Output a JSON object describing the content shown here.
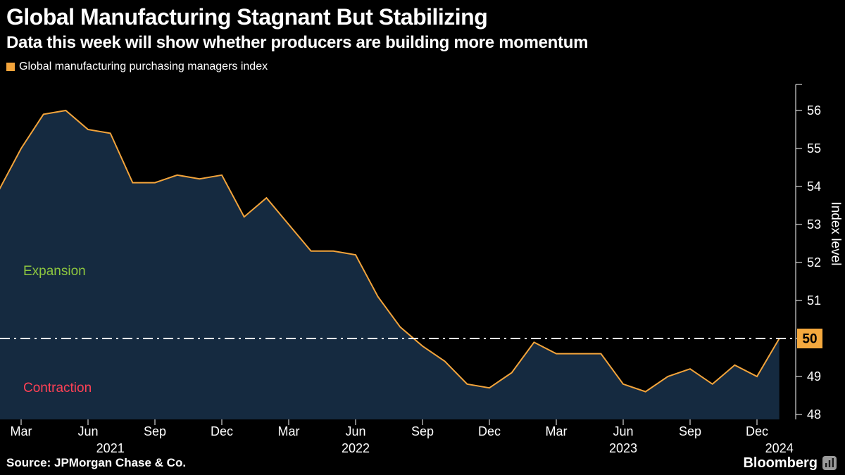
{
  "header": {
    "title": "Global Manufacturing Stagnant But Stabilizing",
    "subtitle": "Data this week will show whether producers are building more momentum"
  },
  "legend": {
    "label": "Global manufacturing purchasing managers index",
    "swatch_color": "#f3a43b"
  },
  "annotations": {
    "expansion": {
      "label": "Expansion",
      "color": "#8dc63f"
    },
    "contraction": {
      "label": "Contraction",
      "color": "#ff4155"
    }
  },
  "footer": {
    "source": "Source: JPMorgan Chase & Co.",
    "brand": "Bloomberg"
  },
  "chart_data": {
    "type": "area",
    "title": "Global Manufacturing Stagnant But Stabilizing",
    "series_name": "Global manufacturing purchasing managers index",
    "categories": [
      "Jan 2021",
      "Feb 2021",
      "Mar 2021",
      "Apr 2021",
      "May 2021",
      "Jun 2021",
      "Jul 2021",
      "Aug 2021",
      "Sep 2021",
      "Oct 2021",
      "Nov 2021",
      "Dec 2021",
      "Jan 2022",
      "Feb 2022",
      "Mar 2022",
      "Apr 2022",
      "May 2022",
      "Jun 2022",
      "Jul 2022",
      "Aug 2022",
      "Sep 2022",
      "Oct 2022",
      "Nov 2022",
      "Dec 2022",
      "Jan 2023",
      "Feb 2023",
      "Mar 2023",
      "Apr 2023",
      "May 2023",
      "Jun 2023",
      "Jul 2023",
      "Aug 2023",
      "Sep 2023",
      "Oct 2023",
      "Nov 2023",
      "Dec 2023",
      "Jan 2024"
    ],
    "values": [
      53.8,
      53.9,
      55.0,
      55.9,
      56.0,
      55.5,
      55.4,
      54.1,
      54.1,
      54.3,
      54.2,
      54.3,
      53.2,
      53.7,
      53.0,
      52.3,
      52.3,
      52.2,
      51.1,
      50.3,
      49.8,
      49.4,
      48.8,
      48.7,
      49.1,
      49.9,
      49.6,
      49.6,
      49.6,
      48.8,
      48.6,
      49.0,
      49.2,
      48.8,
      49.3,
      49.0,
      50.0
    ],
    "xlabel": "",
    "ylabel": "Index level",
    "ylim": [
      48,
      56
    ],
    "y_ticks": [
      48,
      49,
      50,
      51,
      52,
      53,
      54,
      55,
      56
    ],
    "x_ticks": [
      {
        "label": "Mar",
        "i": 2
      },
      {
        "label": "Jun",
        "i": 5
      },
      {
        "label": "Sep",
        "i": 8
      },
      {
        "label": "Dec",
        "i": 11
      },
      {
        "label": "Mar",
        "i": 14
      },
      {
        "label": "Jun",
        "i": 17
      },
      {
        "label": "Sep",
        "i": 20
      },
      {
        "label": "Dec",
        "i": 23
      },
      {
        "label": "Mar",
        "i": 26
      },
      {
        "label": "Jun",
        "i": 29
      },
      {
        "label": "Sep",
        "i": 32
      },
      {
        "label": "Dec",
        "i": 35
      }
    ],
    "year_labels": [
      {
        "label": "2021",
        "i": 6
      },
      {
        "label": "2022",
        "i": 17
      },
      {
        "label": "2023",
        "i": 29
      },
      {
        "label": "2024",
        "i": 36
      }
    ],
    "reference_line": {
      "value": 50,
      "label": "50",
      "style": "dash-dot",
      "color": "#ffffff",
      "badge_color": "#f5a93e"
    },
    "line_color": "#f3a43b",
    "fill_color": "#152a40",
    "background": "#000000",
    "grid": false,
    "legend_position": "top-left",
    "y_axis_side": "right"
  }
}
